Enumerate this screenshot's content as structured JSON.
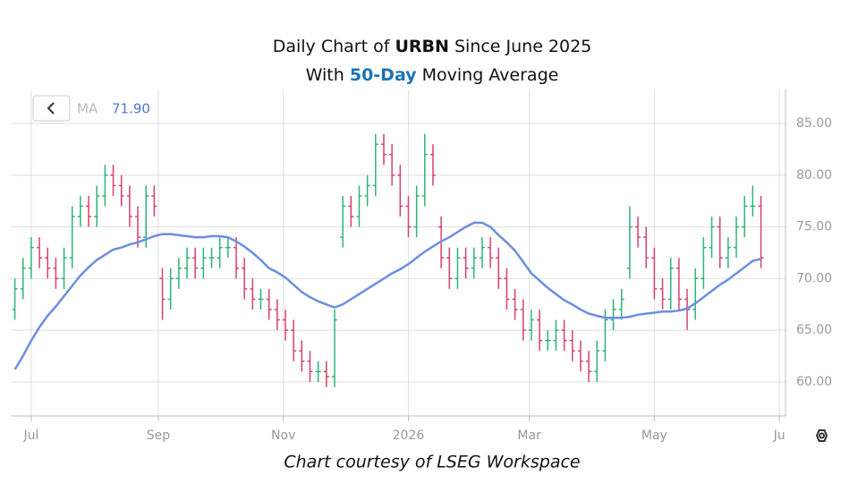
{
  "chart_data": {
    "type": "ohlc",
    "title": [
      "Daily Chart of ",
      "URBN",
      " Since June 2025"
    ],
    "subtitle": [
      "With ",
      "50-Day",
      " Moving Average"
    ],
    "caption": "Chart courtesy of LSEG Workspace",
    "up_color": "#2fb37a",
    "down_color": "#d8406e",
    "open": [
      67,
      69,
      71,
      73,
      72,
      71,
      70,
      72,
      76,
      77,
      76,
      78,
      80,
      79,
      78,
      76,
      74,
      78,
      70,
      68,
      70,
      71,
      72,
      71,
      72,
      72,
      73,
      73,
      71,
      69,
      68,
      68,
      67,
      66,
      65,
      63,
      62,
      61,
      61,
      60.5,
      74,
      77,
      76,
      78,
      79,
      83,
      82,
      80,
      77,
      75,
      78,
      82,
      75,
      72,
      70,
      72,
      71,
      72,
      73,
      72,
      70,
      68,
      67,
      65,
      66,
      64,
      64,
      65,
      64,
      63,
      62,
      61,
      63,
      66,
      67,
      71,
      75,
      74,
      72,
      69,
      68,
      71,
      68,
      67,
      70,
      73,
      75,
      72,
      73,
      75,
      77,
      77
    ],
    "high": [
      70,
      72,
      74,
      74,
      73,
      72,
      73,
      77,
      78,
      78,
      79,
      81,
      81,
      80,
      79,
      77,
      79,
      79,
      71,
      71,
      72,
      73,
      73,
      73,
      73,
      74,
      74,
      74,
      72,
      70,
      69,
      69,
      68,
      67,
      66,
      64,
      63,
      62,
      62,
      67,
      78,
      78,
      79,
      80,
      84,
      84,
      83,
      81,
      78,
      79,
      84,
      83,
      76,
      73,
      73,
      73,
      73,
      74,
      74,
      73,
      71,
      69,
      68,
      67,
      67,
      65,
      66,
      66,
      65,
      64,
      63,
      64,
      67,
      68,
      69,
      77,
      76,
      75,
      73,
      70,
      72,
      72,
      69,
      71,
      74,
      76,
      76,
      74,
      76,
      78,
      79,
      78
    ],
    "low": [
      66,
      68,
      70,
      71,
      70,
      69,
      69,
      71,
      75,
      75,
      75,
      77,
      78,
      77,
      75,
      73,
      73,
      76,
      66,
      67,
      69,
      70,
      70,
      70,
      71,
      71,
      72,
      70,
      68,
      67,
      67,
      66,
      65,
      64,
      62,
      61,
      60,
      60,
      59.5,
      59.5,
      73,
      75,
      75,
      77,
      78,
      81,
      79,
      76,
      74,
      74,
      77,
      79,
      71,
      69,
      69,
      70,
      70,
      71,
      71,
      69,
      67,
      66,
      64,
      64,
      63,
      63,
      63,
      63,
      62,
      61,
      60,
      60,
      62,
      65,
      66,
      70,
      73,
      71,
      68,
      67,
      67,
      67,
      65,
      66,
      69,
      72,
      71,
      71,
      72,
      74,
      76,
      71
    ],
    "close": [
      69,
      71,
      73,
      72,
      71,
      70,
      72,
      76,
      77,
      76,
      78,
      80,
      79,
      78,
      76,
      74,
      78,
      77,
      68,
      70,
      71,
      72,
      71,
      72,
      72,
      73,
      73,
      71,
      69,
      68,
      68,
      67,
      66,
      65,
      63,
      62,
      61,
      61,
      60.5,
      66,
      77,
      76,
      78,
      79,
      83,
      82,
      80,
      77,
      75,
      78,
      82,
      80,
      72,
      70,
      72,
      71,
      72,
      73,
      72,
      70,
      68,
      67,
      65,
      66,
      64,
      64,
      65,
      64,
      63,
      62,
      61,
      63,
      66,
      67,
      68,
      75,
      74,
      72,
      69,
      68,
      71,
      68,
      67,
      70,
      73,
      75,
      72,
      73,
      75,
      77,
      77,
      72
    ],
    "series": [
      {
        "name": "MA",
        "color": "#6b8fe0",
        "value_label": "71.90",
        "values": [
          61.2,
          62.5,
          64,
          65.3,
          66.4,
          67.3,
          68.3,
          69.3,
          70.3,
          71.1,
          71.8,
          72.3,
          72.8,
          73,
          73.3,
          73.5,
          73.8,
          74.1,
          74.3,
          74.3,
          74.2,
          74.1,
          74,
          74,
          74.1,
          74.1,
          74,
          73.6,
          73.1,
          72.5,
          71.8,
          71,
          70.6,
          70.1,
          69.4,
          68.7,
          68.2,
          67.8,
          67.5,
          67.2,
          67.5,
          68,
          68.5,
          69,
          69.5,
          70,
          70.5,
          70.9,
          71.4,
          72,
          72.6,
          73.1,
          73.6,
          74,
          74.5,
          75,
          75.4,
          75.4,
          75,
          74.2,
          73.5,
          72.7,
          71.6,
          70.5,
          69.8,
          69.1,
          68.5,
          67.9,
          67.5,
          67,
          66.6,
          66.4,
          66.2,
          66.2,
          66.2,
          66.3,
          66.5,
          66.6,
          66.7,
          66.8,
          66.8,
          66.9,
          67.1,
          67.6,
          68.2,
          68.8,
          69.4,
          69.9,
          70.5,
          71.1,
          71.7,
          71.9
        ]
      }
    ],
    "xlim": [
      -0.5,
      94
    ],
    "xticks": [
      {
        "value": 2,
        "label": "Jul"
      },
      {
        "value": 17.5,
        "label": "Sep"
      },
      {
        "value": 32.75,
        "label": "Nov"
      },
      {
        "value": 48,
        "label": "2026"
      },
      {
        "value": 62.75,
        "label": "Mar"
      },
      {
        "value": 78,
        "label": "May"
      },
      {
        "value": 93.25,
        "label": "Ju"
      }
    ],
    "ylim": [
      56.7,
      88.3
    ],
    "yticks": [
      {
        "value": 60,
        "label": "60.00"
      },
      {
        "value": 65,
        "label": "65.00"
      },
      {
        "value": 70,
        "label": "70.00"
      },
      {
        "value": 75,
        "label": "75.00"
      },
      {
        "value": 80,
        "label": "80.00"
      },
      {
        "value": 85,
        "label": "85.00"
      }
    ],
    "grid": true
  }
}
